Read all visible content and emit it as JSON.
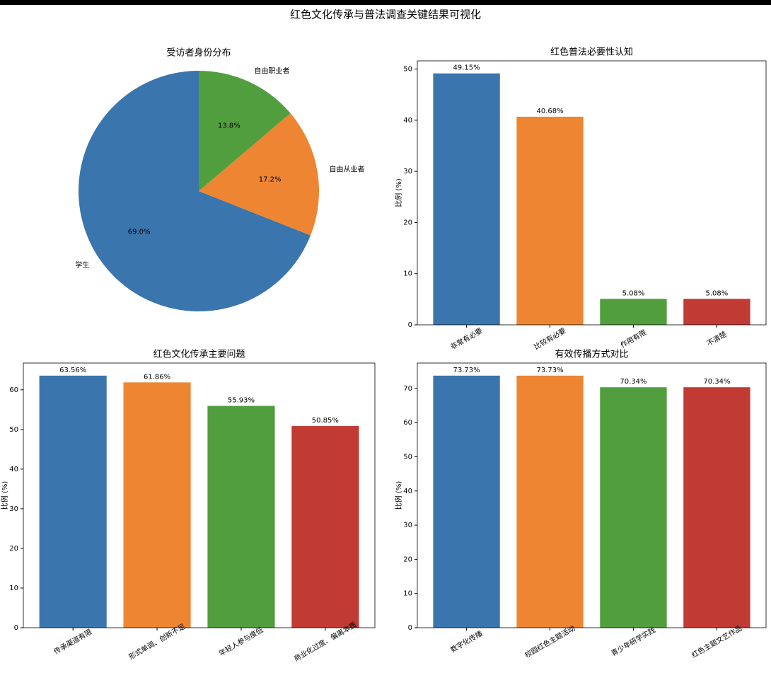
{
  "title": "红色文化传承与普法调查关键结果可视化",
  "chart_data": [
    {
      "type": "pie",
      "title": "受访者身份分布",
      "categories": [
        "学生",
        "自由从业者",
        "自由职业者"
      ],
      "values": [
        69.0,
        17.2,
        13.8
      ],
      "value_labels": [
        "69.0%",
        "17.2%",
        "13.8%"
      ],
      "colors": [
        "#3a75ad",
        "#ee8533",
        "#519e3e"
      ]
    },
    {
      "type": "bar",
      "title": "红色普法必要性认知",
      "ylabel": "比例 (%)",
      "categories": [
        "非常有必要",
        "比较有必要",
        "作用有限",
        "不清楚"
      ],
      "values": [
        49.15,
        40.68,
        5.08,
        5.08
      ],
      "value_labels": [
        "49.15%",
        "40.68%",
        "5.08%",
        "5.08%"
      ],
      "colors": [
        "#3a75ad",
        "#ee8533",
        "#519e3e",
        "#c13a33"
      ],
      "ylim": [
        0,
        51.6
      ],
      "yticks": [
        0,
        10,
        20,
        30,
        40,
        50
      ]
    },
    {
      "type": "bar",
      "title": "红色文化传承主要问题",
      "ylabel": "比例 (%)",
      "categories": [
        "传承渠道有限",
        "形式单调、创新不足",
        "年轻人参与度低",
        "商业化过度、偏离本质"
      ],
      "values": [
        63.56,
        61.86,
        55.93,
        50.85
      ],
      "value_labels": [
        "63.56%",
        "61.86%",
        "55.93%",
        "50.85%"
      ],
      "colors": [
        "#3a75ad",
        "#ee8533",
        "#519e3e",
        "#c13a33"
      ],
      "ylim": [
        0,
        66.74
      ],
      "yticks": [
        0,
        10,
        20,
        30,
        40,
        50,
        60
      ]
    },
    {
      "type": "bar",
      "title": "有效传播方式对比",
      "ylabel": "比例 (%)",
      "categories": [
        "数字化传播",
        "校园红色主题活动",
        "青少年研学实践",
        "红色主题文艺作品"
      ],
      "values": [
        73.73,
        73.73,
        70.34,
        70.34
      ],
      "value_labels": [
        "73.73%",
        "73.73%",
        "70.34%",
        "70.34%"
      ],
      "colors": [
        "#3a75ad",
        "#ee8533",
        "#519e3e",
        "#c13a33"
      ],
      "ylim": [
        0,
        77.42
      ],
      "yticks": [
        0,
        10,
        20,
        30,
        40,
        50,
        60,
        70
      ]
    }
  ]
}
